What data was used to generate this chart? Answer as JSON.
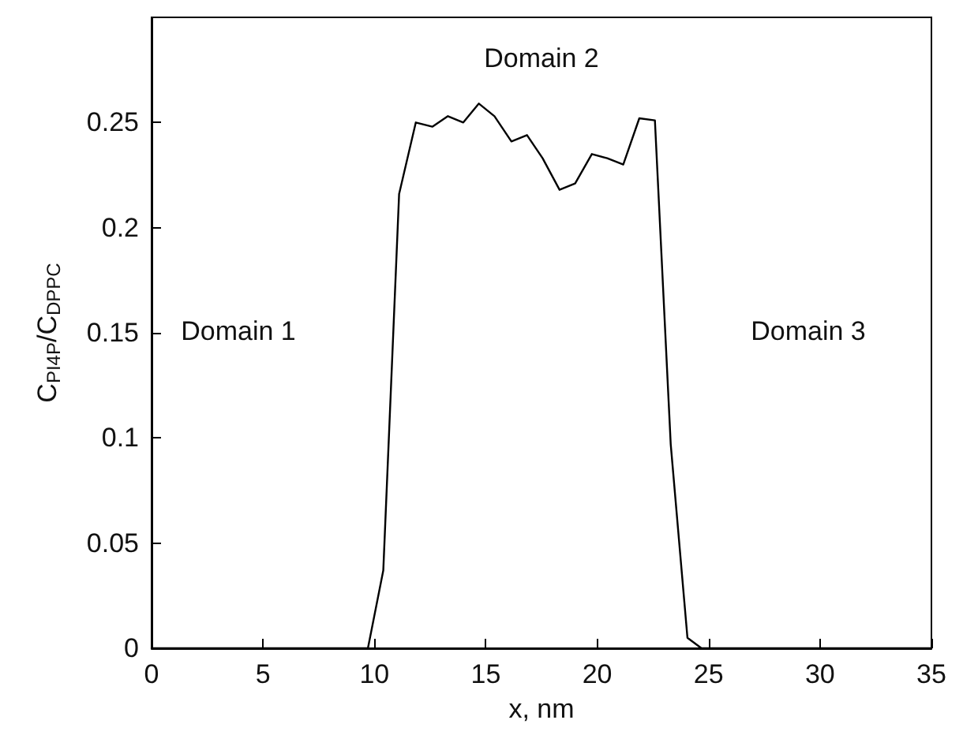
{
  "chart_data": {
    "type": "line",
    "xlabel": "x, nm",
    "ylabel": "C$_{PI4P}$/C$_{DPPC}$",
    "x": [
      0,
      9.71,
      10.4,
      11.11,
      11.86,
      12.6,
      13.3,
      13.99,
      14.69,
      15.39,
      16.15,
      16.85,
      17.55,
      18.31,
      19.01,
      19.76,
      20.45,
      21.17,
      21.89,
      22.59,
      23.3,
      24.05,
      24.68,
      35
    ],
    "series": [
      {
        "color": "#000000",
        "values": [
          0,
          0,
          0.037,
          0.216,
          0.25,
          0.248,
          0.253,
          0.25,
          0.259,
          0.253,
          0.241,
          0.244,
          0.233,
          0.218,
          0.221,
          0.235,
          0.233,
          0.23,
          0.252,
          0.251,
          0.097,
          0.005,
          0,
          0
        ]
      }
    ],
    "xlim": [
      0,
      35
    ],
    "xticks": [
      0,
      5,
      10,
      15,
      20,
      25,
      30,
      35
    ],
    "ylim": [
      0,
      0.3
    ],
    "yticks": [
      0,
      0.05,
      0.1,
      0.15,
      0.2,
      0.25
    ],
    "annotations": [
      "Domain 1",
      "Domain 2",
      "Domain 3"
    ],
    "grid": false,
    "marker": "none",
    "line_style": "solid"
  }
}
